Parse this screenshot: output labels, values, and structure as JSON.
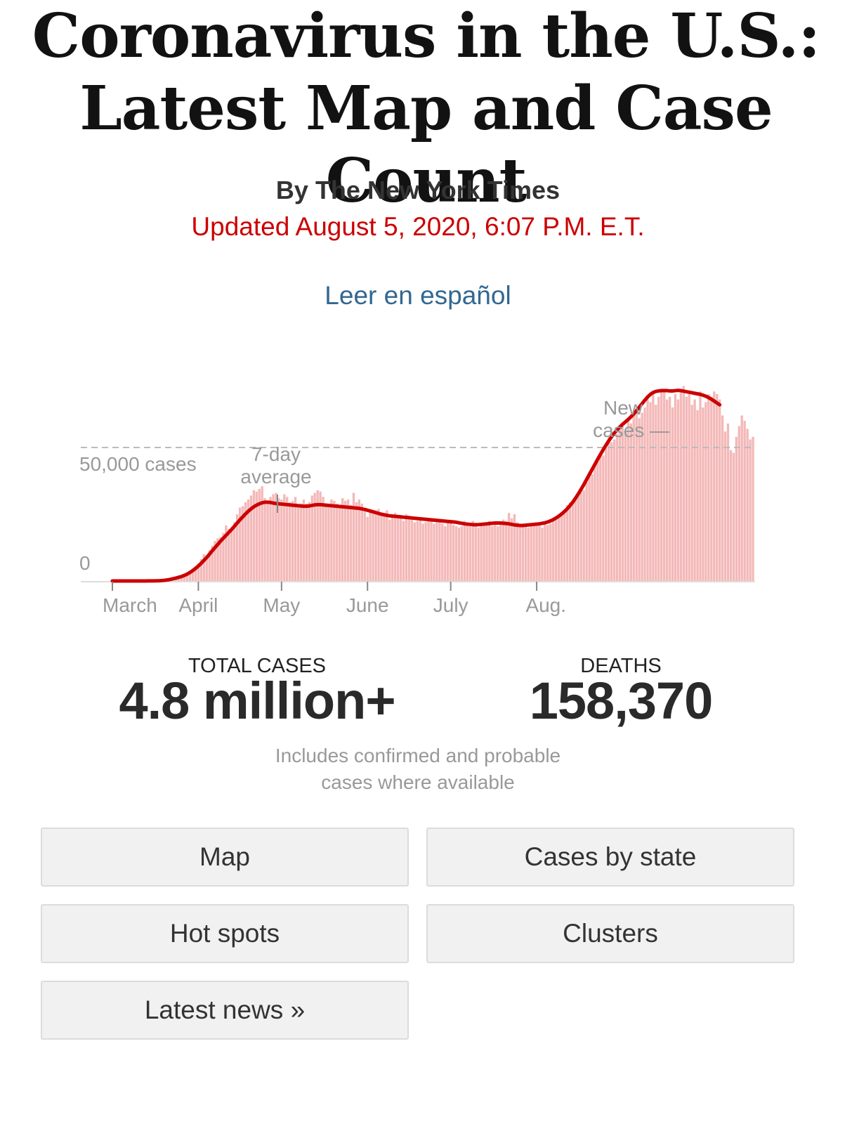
{
  "headline": {
    "line1": "Coronavirus in the U.S.:",
    "line2": "Latest Map and Case Count"
  },
  "byline": "By The New York Times",
  "updated": "Updated August 5, 2020, 6:07 P.M. E.T.",
  "spanish_link": "Leer en español",
  "colors": {
    "accent_red": "#cc0000",
    "link_blue": "#326891",
    "bar_pink": "#f4b8b8",
    "line_red": "#cc0000"
  },
  "chart_data": {
    "type": "bar",
    "y_reference_label": "50,000 cases",
    "y_zero_label": "0",
    "reference_value": 50000,
    "ylim": [
      0,
      75000
    ],
    "annotations": {
      "avg_label_line1": "7-day",
      "avg_label_line2": "average",
      "new_label_line1": "New",
      "new_label_line2": "cases —"
    },
    "x_ticks": [
      {
        "label": "March",
        "day": 0
      },
      {
        "label": "April",
        "day": 31
      },
      {
        "label": "May",
        "day": 61
      },
      {
        "label": "June",
        "day": 92
      },
      {
        "label": "July",
        "day": 122
      },
      {
        "label": "Aug.",
        "day": 153
      }
    ],
    "series": [
      {
        "kind": "daily",
        "values": [
          1,
          1,
          1,
          1,
          2,
          3,
          4,
          5,
          7,
          9,
          12,
          15,
          20,
          25,
          35,
          55,
          90,
          150,
          260,
          400,
          650,
          950,
          1300,
          1600,
          1900,
          2200,
          2600,
          3000,
          3800,
          4700,
          5600,
          6500,
          8200,
          10000,
          9500,
          11500,
          13200,
          15000,
          16000,
          16500,
          18000,
          20800,
          19500,
          19000,
          22000,
          25000,
          27500,
          28000,
          29500,
          30500,
          32000,
          34000,
          33500,
          34500,
          35500,
          31000,
          30000,
          31500,
          32500,
          33000,
          31000,
          30500,
          32500,
          31500,
          29500,
          30000,
          31500,
          28500,
          29000,
          30500,
          29000,
          29500,
          32000,
          33000,
          34000,
          33500,
          31500,
          29000,
          28000,
          30500,
          30000,
          29000,
          28500,
          31000,
          30000,
          30500,
          28500,
          33000,
          29500,
          30500,
          29000,
          27000,
          24000,
          26000,
          25500,
          26500,
          27000,
          25000,
          24500,
          26500,
          23000,
          24500,
          25500,
          23500,
          24000,
          22500,
          25000,
          24500,
          23500,
          22000,
          22500,
          23500,
          21500,
          22000,
          22500,
          23000,
          21500,
          22000,
          23000,
          21500,
          20500,
          22500,
          22000,
          21000,
          20500,
          20000,
          20500,
          22500,
          21500,
          20500,
          22500,
          21000,
          20000,
          21500,
          22000,
          21000,
          22500,
          20500,
          21500,
          20500,
          22000,
          23000,
          22500,
          25500,
          23500,
          25000,
          22000,
          21000,
          20500,
          20500,
          20000,
          21000,
          21500,
          22000,
          21000,
          20000,
          21500,
          21000,
          21500,
          22500,
          23500,
          24000,
          25500,
          26000,
          28500,
          29500,
          29000,
          30500,
          32000,
          35000,
          34000,
          37000,
          39000,
          40000,
          43000,
          45000,
          48000,
          47000,
          50000,
          54000,
          52000,
          53000,
          55000,
          57000,
          58000,
          56000,
          60000,
          59000,
          62000,
          64000,
          61000,
          63000,
          65000,
          68000,
          67000,
          70000,
          66000,
          69000,
          72000,
          71000,
          68000,
          69000,
          65000,
          70000,
          68000,
          71000,
          73000,
          69000,
          70000,
          66000,
          68000,
          64000,
          71000,
          65000,
          67000,
          70000,
          69000,
          71000,
          70000,
          68000,
          62000,
          56000,
          59000,
          49000,
          48000,
          54000,
          58000,
          62000,
          60000,
          57000,
          53000,
          54000
        ]
      },
      {
        "kind": "7-day average",
        "values": [
          1,
          1,
          1,
          1,
          2,
          3,
          4,
          5,
          6,
          8,
          10,
          13,
          17,
          22,
          30,
          45,
          70,
          110,
          180,
          280,
          420,
          620,
          860,
          1100,
          1400,
          1700,
          2100,
          2600,
          3200,
          3900,
          4700,
          5600,
          6600,
          7700,
          8800,
          10000,
          11300,
          12500,
          13700,
          14900,
          16000,
          17100,
          18200,
          19300,
          20500,
          21700,
          22900,
          24000,
          25100,
          26100,
          27000,
          27800,
          28400,
          28900,
          29300,
          29500,
          29500,
          29400,
          29200,
          29000,
          28900,
          28800,
          28700,
          28600,
          28500,
          28400,
          28300,
          28200,
          28100,
          28000,
          28000,
          28100,
          28300,
          28500,
          28600,
          28600,
          28500,
          28400,
          28300,
          28200,
          28100,
          28000,
          27900,
          27800,
          27700,
          27600,
          27500,
          27400,
          27300,
          27200,
          27000,
          26800,
          26500,
          26200,
          25900,
          25600,
          25300,
          25000,
          24800,
          24600,
          24400,
          24300,
          24200,
          24100,
          24000,
          23900,
          23800,
          23700,
          23600,
          23500,
          23400,
          23300,
          23200,
          23100,
          23000,
          22900,
          22800,
          22700,
          22600,
          22500,
          22400,
          22300,
          22200,
          22100,
          22000,
          21800,
          21600,
          21400,
          21300,
          21200,
          21100,
          21100,
          21100,
          21200,
          21300,
          21400,
          21500,
          21600,
          21700,
          21700,
          21700,
          21600,
          21500,
          21400,
          21200,
          21000,
          20900,
          20800,
          20800,
          20900,
          21000,
          21100,
          21200,
          21300,
          21400,
          21600,
          21800,
          22100,
          22500,
          23000,
          23600,
          24300,
          25100,
          26000,
          27000,
          28200,
          29500,
          31000,
          32600,
          34300,
          36100,
          38000,
          39900,
          41800,
          43700,
          45600,
          47400,
          49200,
          50900,
          52500,
          54000,
          55400,
          56600,
          57700,
          58700,
          59600,
          60500,
          61500,
          62600,
          63800,
          65100,
          66400,
          67700,
          68900,
          69900,
          70600,
          71000,
          71200,
          71300,
          71300,
          71300,
          71200,
          71200,
          71300,
          71400,
          71300,
          71100,
          70900,
          70700,
          70500,
          70300,
          70100,
          69900,
          69600,
          69200,
          68700,
          68100,
          67400,
          66700,
          66000
        ]
      }
    ]
  },
  "stats": {
    "total_cases_label": "TOTAL CASES",
    "total_cases_value": "4.8 million+",
    "deaths_label": "DEATHS",
    "deaths_value": "158,370"
  },
  "note": {
    "line1": "Includes confirmed and probable",
    "line2": "cases where available"
  },
  "nav": {
    "map": "Map",
    "cases_by_state": "Cases by state",
    "hot_spots": "Hot spots",
    "clusters": "Clusters",
    "latest_news": "Latest news »"
  }
}
